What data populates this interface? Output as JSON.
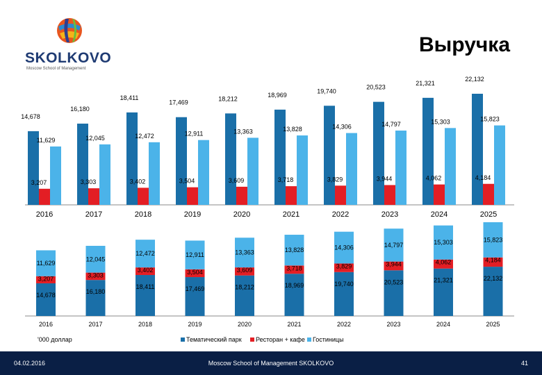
{
  "logo": {
    "name": "SKOLKOVO",
    "subtitle": "Moscow School of Management"
  },
  "title": "Выручка",
  "unit_note": "'000 доллар",
  "footer": {
    "date": "04.02.2016",
    "center": "Moscow School of Management SKOLKOVO",
    "page": "41"
  },
  "colors": {
    "park": "#1a6fa8",
    "restaurant": "#e31e24",
    "hotel": "#4bb3e9",
    "footer_bg": "#0a1f45"
  },
  "chart_data": [
    {
      "type": "bar",
      "title": "",
      "categories": [
        "2016",
        "2017",
        "2018",
        "2019",
        "2020",
        "2021",
        "2022",
        "2023",
        "2024",
        "2025"
      ],
      "series": [
        {
          "name": "Тематический парк",
          "values": [
            14678,
            16180,
            18411,
            17469,
            18212,
            18969,
            19740,
            20523,
            21321,
            22132
          ],
          "labels": [
            "14,678",
            "16,180",
            "18,411",
            "17,469",
            "18,212",
            "18,969",
            "19,740",
            "20,523",
            "21,321",
            "22,132"
          ]
        },
        {
          "name": "Ресторан + кафе",
          "values": [
            3207,
            3303,
            3402,
            3504,
            3609,
            3718,
            3829,
            3944,
            4062,
            4184
          ],
          "labels": [
            "3,207",
            "3,303",
            "3,402",
            "3,504",
            "3,609",
            "3,718",
            "3,829",
            "3,944",
            "4,062",
            "4,184"
          ]
        },
        {
          "name": "Гостиницы",
          "values": [
            11629,
            12045,
            12472,
            12911,
            13363,
            13828,
            14306,
            14797,
            15303,
            15823
          ],
          "labels": [
            "11,629",
            "12,045",
            "12,472",
            "12,911",
            "13,363",
            "13,828",
            "14,306",
            "14,797",
            "15,303",
            "15,823"
          ]
        }
      ],
      "grid": false,
      "legend": "none"
    },
    {
      "type": "bar",
      "stacked": true,
      "title": "",
      "categories": [
        "2016",
        "2017",
        "2018",
        "2019",
        "2020",
        "2021",
        "2022",
        "2023",
        "2024",
        "2025"
      ],
      "series": [
        {
          "name": "Тематический парк",
          "values": [
            14678,
            16180,
            18411,
            17469,
            18212,
            18969,
            19740,
            20523,
            21321,
            22132
          ],
          "labels": [
            "14,678",
            "16,180",
            "18,411",
            "17,469",
            "18,212",
            "18,969",
            "19,740",
            "20,523",
            "21,321",
            "22,132"
          ]
        },
        {
          "name": "Ресторан + кафе",
          "values": [
            3207,
            3303,
            3402,
            3504,
            3609,
            3718,
            3829,
            3944,
            4062,
            4184
          ],
          "labels": [
            "3,207",
            "3,303",
            "3,402",
            "3,504",
            "3,609",
            "3,718",
            "3,829",
            "3,944",
            "4,062",
            "4,184"
          ]
        },
        {
          "name": "Гостиницы",
          "values": [
            11629,
            12045,
            12472,
            12911,
            13363,
            13828,
            14306,
            14797,
            15303,
            15823
          ],
          "labels": [
            "11,629",
            "12,045",
            "12,472",
            "12,911",
            "13,363",
            "13,828",
            "14,306",
            "14,797",
            "15,303",
            "15,823"
          ]
        }
      ],
      "grid": false,
      "legend": "bottom"
    }
  ]
}
